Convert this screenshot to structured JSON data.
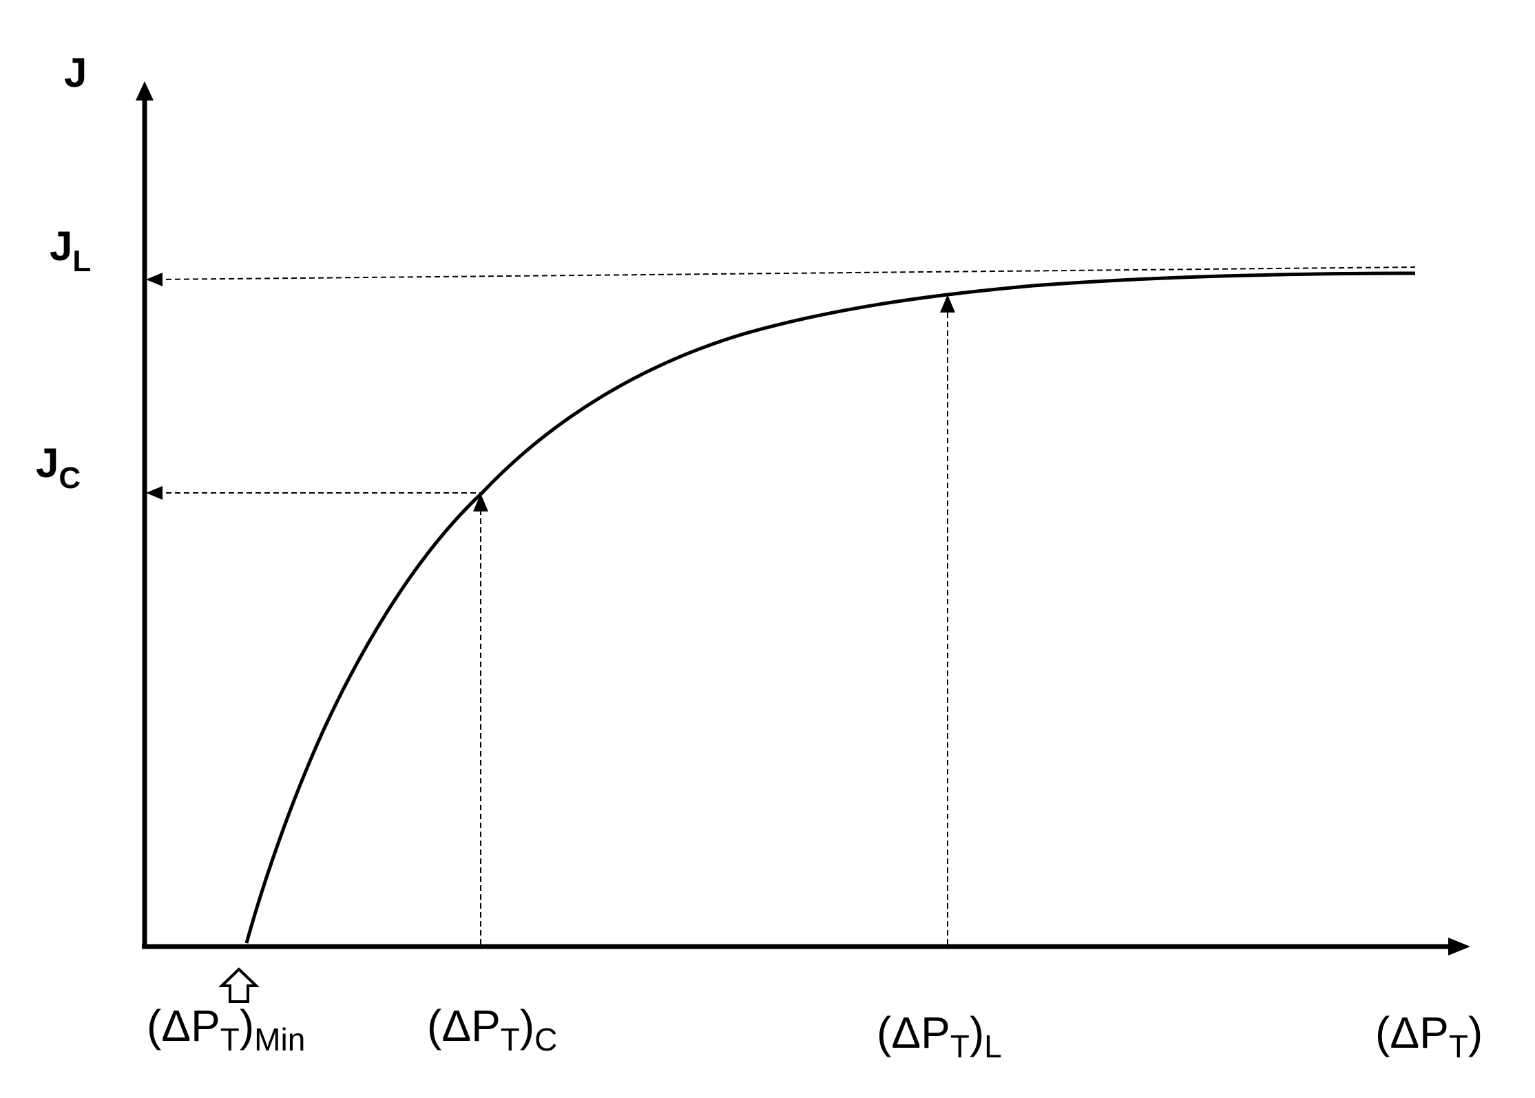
{
  "diagram": {
    "y_axis": {
      "label": "J"
    },
    "y_marks": [
      {
        "main": "J",
        "sub": "L"
      },
      {
        "main": "J",
        "sub": "C"
      }
    ],
    "x_marks": [
      {
        "pre": "(ΔP",
        "sub1": "T",
        "mid": ")",
        "sub2": "Min"
      },
      {
        "pre": "(ΔP",
        "sub1": "T",
        "mid": ")",
        "sub2": "C"
      },
      {
        "pre": "(ΔP",
        "sub1": "T",
        "mid": ")",
        "sub2": "L"
      },
      {
        "pre": "(ΔP",
        "sub1": "T",
        "mid": ")",
        "sub2": ""
      }
    ]
  },
  "colors": {
    "ink": "#000000",
    "background": "#ffffff"
  }
}
